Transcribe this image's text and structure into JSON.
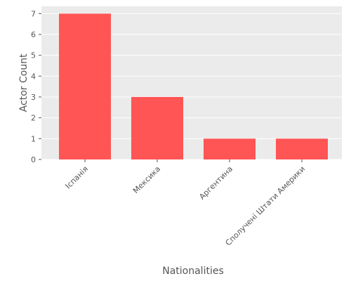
{
  "chart_data": {
    "type": "bar",
    "categories": [
      "Іспанія",
      "Мексика",
      "Аргентина",
      "Сполучені Штати Америки"
    ],
    "values": [
      7,
      3,
      1,
      1
    ],
    "title": "",
    "xlabel": "Nationalities",
    "ylabel": "Actor Count",
    "ylim": [
      0,
      7.35
    ],
    "yticks": [
      0,
      1,
      2,
      3,
      4,
      5,
      6,
      7
    ],
    "grid": true,
    "colors": {
      "bar": "#ff5555",
      "plot_background": "#ebebeb",
      "grid": "#ffffff",
      "text": "#555555"
    }
  }
}
